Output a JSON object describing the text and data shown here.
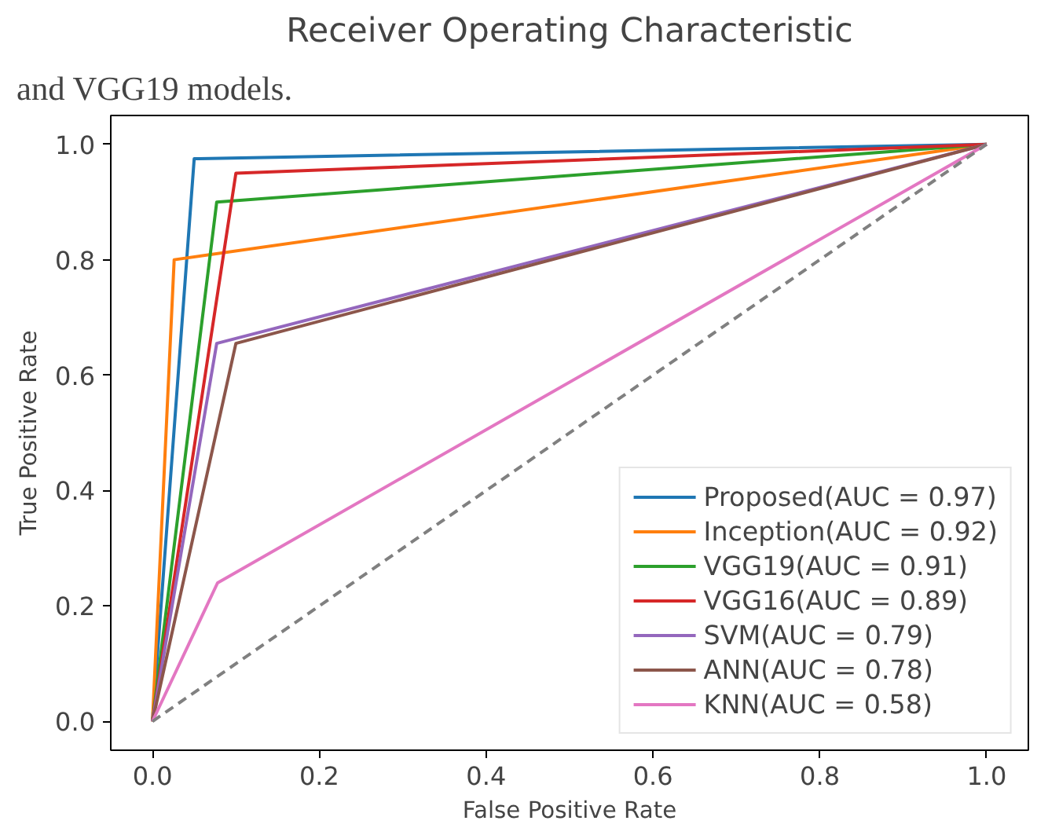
{
  "chart_data": {
    "type": "line",
    "title": "Receiver Operating Characteristic",
    "xlabel": "False Positive Rate",
    "ylabel": "True Positive Rate",
    "annotations": [
      "and VGG19 models."
    ],
    "series": [
      {
        "name": "Proposed(AUC = 0.97)",
        "color": "#1f77b4",
        "x": [
          0,
          0.05,
          1
        ],
        "values": [
          0,
          0.975,
          1
        ]
      },
      {
        "name": "Inception(AUC = 0.92)",
        "color": "#ff7f0e",
        "x": [
          0,
          0.026,
          1
        ],
        "values": [
          0,
          0.8,
          1
        ]
      },
      {
        "name": "VGG19(AUC = 0.91)",
        "color": "#2ca02c",
        "x": [
          0,
          0.077,
          1
        ],
        "values": [
          0,
          0.9,
          1
        ]
      },
      {
        "name": "VGG16(AUC = 0.89)",
        "color": "#d62728",
        "x": [
          0,
          0.1,
          1
        ],
        "values": [
          0,
          0.95,
          1
        ]
      },
      {
        "name": "SVM(AUC = 0.79)",
        "color": "#9467bd",
        "x": [
          0,
          0.077,
          1
        ],
        "values": [
          0,
          0.655,
          1
        ]
      },
      {
        "name": "ANN(AUC = 0.78)",
        "color": "#8c564b",
        "x": [
          0,
          0.1,
          1
        ],
        "values": [
          0,
          0.655,
          1
        ]
      },
      {
        "name": "KNN(AUC = 0.58)",
        "color": "#e377c2",
        "x": [
          0,
          0.078,
          1
        ],
        "values": [
          0,
          0.24,
          1
        ]
      },
      {
        "color": "#808080",
        "x": [
          0,
          1
        ],
        "values": [
          0,
          1
        ],
        "line_style": "dashed"
      }
    ],
    "xlim": [
      -0.05,
      1.05
    ],
    "ylim": [
      -0.05,
      1.05
    ],
    "xticks": [
      {
        "value": 0,
        "label": "0.0"
      },
      {
        "value": 0.2,
        "label": "0.2"
      },
      {
        "value": 0.4,
        "label": "0.4"
      },
      {
        "value": 0.6,
        "label": "0.6"
      },
      {
        "value": 0.8,
        "label": "0.8"
      },
      {
        "value": 1,
        "label": "1.0"
      }
    ],
    "yticks": [
      {
        "value": 0,
        "label": "0.0"
      },
      {
        "value": 0.2,
        "label": "0.2"
      },
      {
        "value": 0.4,
        "label": "0.4"
      },
      {
        "value": 0.6,
        "label": "0.6"
      },
      {
        "value": 0.8,
        "label": "0.8"
      },
      {
        "value": 1,
        "label": "1.0"
      }
    ],
    "legend": "bottom right",
    "grid": false
  }
}
